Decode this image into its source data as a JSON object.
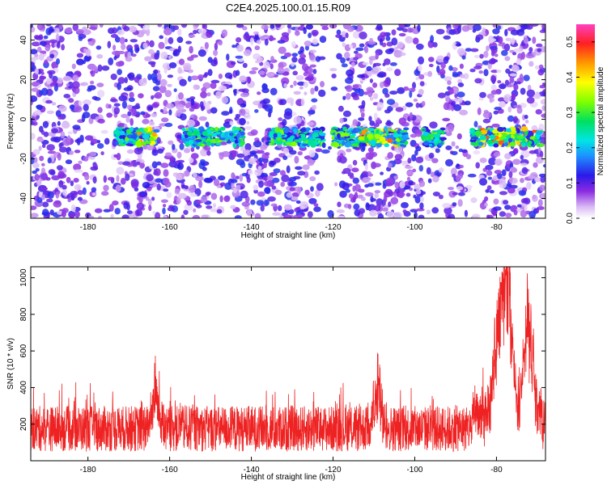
{
  "title": "C2E4.2025.100.01.15.R09",
  "chart_data": [
    {
      "type": "heatmap",
      "xlabel": "Height of straight line (km)",
      "ylabel": "Frequency (Hz)",
      "xlim": [
        -194,
        -68
      ],
      "ylim": [
        -50,
        48
      ],
      "xticks": [
        -180,
        -160,
        -140,
        -120,
        -100,
        -80
      ],
      "yticks": [
        -40,
        -20,
        0,
        20,
        40
      ],
      "colorbar": {
        "label": "Normalized spectral amplitude",
        "range": [
          0.0,
          0.55
        ],
        "ticks": [
          0.0,
          0.1,
          0.2,
          0.3,
          0.4,
          0.5
        ],
        "tick_labels": [
          "0.0",
          "0.1",
          "0.2",
          "0.3",
          "0.4",
          "0.5"
        ],
        "colormap": "rainbow (white-purple-blue-cyan-green-yellow-orange-red-magenta)"
      },
      "features": [
        {
          "description": "band of elevated amplitude centred near -9 Hz",
          "x_range": [
            -173,
            -69
          ],
          "freq_center": -9,
          "freq_width": 7
        },
        {
          "description": "band segments",
          "segments": [
            [
              -173,
              -163
            ],
            [
              -157,
              -142
            ],
            [
              -136,
              -122
            ],
            [
              -120,
              -102
            ],
            [
              -98,
              -93
            ],
            [
              -86,
              -69
            ]
          ]
        }
      ]
    },
    {
      "type": "line",
      "color": "#ee2222",
      "xlabel": "Height of straight line (km)",
      "ylabel": "SNR (10 * v/v)",
      "xlim": [
        -194,
        -68
      ],
      "ylim": [
        0,
        1060
      ],
      "xticks": [
        -180,
        -160,
        -140,
        -120,
        -100,
        -80
      ],
      "yticks": [
        200,
        400,
        600,
        800,
        1000
      ],
      "baseline_range": [
        50,
        300
      ],
      "peaks": [
        {
          "x": -163.5,
          "y": 570
        },
        {
          "x": -109,
          "y": 580
        },
        {
          "x": -80,
          "y": 800
        },
        {
          "x": -78.5,
          "y": 760
        },
        {
          "x": -77.5,
          "y": 1060
        },
        {
          "x": -76.5,
          "y": 790
        },
        {
          "x": -73,
          "y": 640
        },
        {
          "x": -72,
          "y": 860
        }
      ]
    }
  ]
}
